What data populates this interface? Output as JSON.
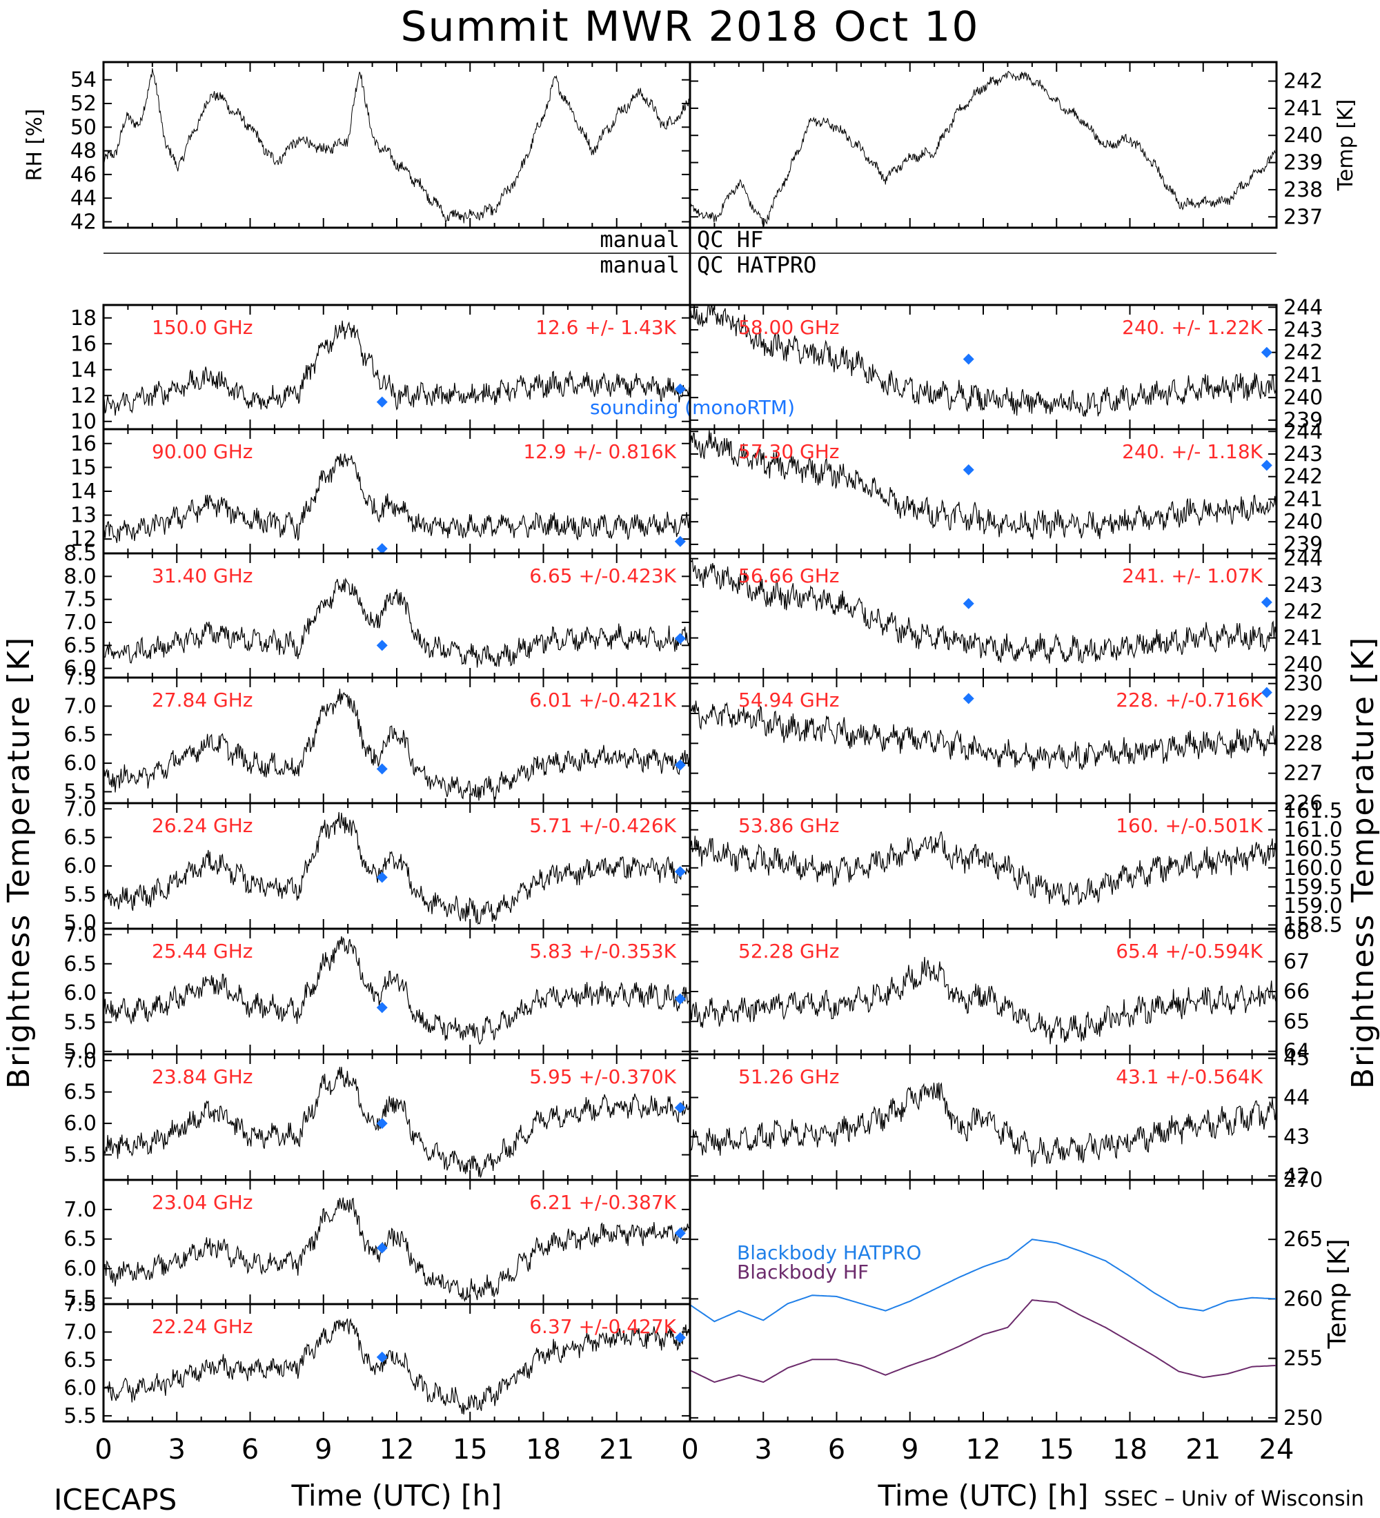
{
  "title": "Summit MWR 2018 Oct 10",
  "footer_left": "ICECAPS",
  "footer_right": "SSEC – Univ of Wisconsin",
  "x_axis": {
    "label": "Time (UTC) [h]",
    "ticks": [
      0,
      3,
      6,
      9,
      12,
      15,
      18,
      21,
      24
    ],
    "range": [
      0,
      24
    ]
  },
  "y_axis_left_label": "Brightness Temperature [K]",
  "y_axis_right_label": "Brightness Temperature [K]",
  "qc": {
    "left_text": "manual",
    "line1_right": "QC HF",
    "line2_right": "QC HATPRO"
  },
  "sounding_label": "sounding (monoRTM)",
  "colors": {
    "data": "#000000",
    "stat_text": "#ff2a2a",
    "sounding": "#1a75ff",
    "bb_hatpro": "#1f7fe8",
    "bb_hf": "#6b2a6b"
  },
  "chart_data": [
    {
      "id": "rh",
      "type": "line",
      "ylabel": "RH [%]",
      "ylim": [
        41.5,
        55.5
      ],
      "yticks": [
        42,
        44,
        46,
        48,
        50,
        52,
        54
      ],
      "x": [
        0,
        0.5,
        1,
        1.5,
        2,
        2.5,
        3,
        4,
        4.5,
        5,
        6,
        7,
        8,
        9,
        10,
        10.5,
        11,
        12,
        13,
        14,
        15,
        16,
        17,
        18,
        18.5,
        19,
        20,
        21,
        22,
        23,
        24
      ],
      "values": [
        47,
        48,
        51,
        50,
        55,
        49,
        46.5,
        51,
        53,
        52,
        50,
        47,
        49,
        48,
        49,
        55,
        49,
        47,
        45,
        42.5,
        42.5,
        43,
        46,
        51,
        54,
        52,
        48,
        51,
        53,
        50,
        52
      ]
    },
    {
      "id": "temp",
      "type": "line",
      "ylabel": "Temp [K]",
      "ylim": [
        236.6,
        242.7
      ],
      "yticks": [
        237,
        238,
        239,
        240,
        241,
        242
      ],
      "x": [
        0,
        1,
        2,
        3,
        4,
        5,
        6,
        7,
        8,
        9,
        10,
        11,
        12,
        13,
        14,
        15,
        16,
        17,
        18,
        19,
        20,
        21,
        22,
        23,
        24
      ],
      "values": [
        237.3,
        236.9,
        238.3,
        236.7,
        238.6,
        240.6,
        240.3,
        239.5,
        238.4,
        239.2,
        239.4,
        240.9,
        241.8,
        242.2,
        242.1,
        241.2,
        240.6,
        239.6,
        239.9,
        238.9,
        237.5,
        237.5,
        237.6,
        238.5,
        239.3
      ]
    },
    {
      "id": "f150",
      "type": "line",
      "freq_label": "150.0 GHz",
      "stat": "12.6 +/- 1.43K",
      "ylim": [
        9.4,
        19
      ],
      "yticks": [
        10,
        12,
        14,
        16,
        18
      ],
      "ytick_labels": [
        "10",
        "12",
        "14",
        "16",
        "18"
      ],
      "x": [
        0,
        2,
        4.5,
        6,
        8,
        9,
        10,
        11,
        12,
        15,
        18,
        21,
        24
      ],
      "values": [
        11,
        12,
        13.5,
        11.5,
        12.3,
        15.8,
        17.5,
        14,
        12,
        12,
        12.8,
        12.8,
        12.3
      ],
      "sounding": [
        [
          11.4,
          11.5
        ],
        [
          23.6,
          12.5
        ]
      ],
      "show_sounding_label": true
    },
    {
      "id": "f90",
      "type": "line",
      "freq_label": "90.00 GHz",
      "stat": "12.9 +/- 0.816K",
      "ylim": [
        11.4,
        16.6
      ],
      "yticks": [
        12,
        13,
        14,
        15,
        16
      ],
      "ytick_labels": [
        "12",
        "13",
        "14",
        "15",
        "16"
      ],
      "x": [
        0,
        2,
        4.5,
        6,
        8,
        9,
        10,
        11,
        12,
        13,
        15,
        18,
        21,
        24
      ],
      "values": [
        12.2,
        12.5,
        13.5,
        12.8,
        12.5,
        14.5,
        15.5,
        13.2,
        13.5,
        12.5,
        12.5,
        12.6,
        12.5,
        12.7
      ],
      "sounding": [
        [
          11.4,
          11.6
        ],
        [
          23.6,
          11.9
        ]
      ]
    },
    {
      "id": "f31",
      "type": "line",
      "freq_label": "31.40 GHz",
      "stat": "6.65 +/-0.423K",
      "ylim": [
        5.8,
        8.5
      ],
      "yticks": [
        6.0,
        6.5,
        7.0,
        7.5,
        8.0,
        8.5
      ],
      "ytick_labels": [
        "6.0",
        "6.5",
        "7.0",
        "7.5",
        "8.0",
        "8.5"
      ],
      "x": [
        0,
        2,
        4.5,
        6,
        8,
        9,
        10,
        11,
        12,
        13,
        15,
        16,
        18,
        21,
        24
      ],
      "values": [
        6.3,
        6.4,
        6.8,
        6.6,
        6.5,
        7.4,
        7.9,
        6.9,
        7.7,
        6.5,
        6.3,
        6.2,
        6.6,
        6.7,
        6.6
      ],
      "sounding": [
        [
          11.4,
          6.5
        ],
        [
          23.6,
          6.65
        ]
      ]
    },
    {
      "id": "f27",
      "type": "line",
      "freq_label": "27.84 GHz",
      "stat": "6.01 +/-0.421K",
      "ylim": [
        5.3,
        7.5
      ],
      "yticks": [
        5.5,
        6.0,
        6.5,
        7.0,
        7.5
      ],
      "ytick_labels": [
        "5.5",
        "6.0",
        "6.5",
        "7.0",
        "7.5"
      ],
      "x": [
        0,
        2,
        4.5,
        6,
        8,
        9,
        10,
        11,
        12,
        13,
        15,
        16,
        18,
        21,
        24
      ],
      "values": [
        5.7,
        5.8,
        6.4,
        6.0,
        5.9,
        6.9,
        7.2,
        6.0,
        6.6,
        5.8,
        5.5,
        5.6,
        6.0,
        6.1,
        6.0
      ],
      "sounding": [
        [
          11.4,
          5.9
        ],
        [
          23.6,
          5.97
        ]
      ]
    },
    {
      "id": "f26",
      "type": "line",
      "freq_label": "26.24 GHz",
      "stat": "5.71 +/-0.426K",
      "ylim": [
        4.9,
        7.1
      ],
      "yticks": [
        5.0,
        5.5,
        6.0,
        6.5,
        7.0
      ],
      "ytick_labels": [
        "5.0",
        "5.5",
        "6.0",
        "6.5",
        "7.0"
      ],
      "x": [
        0,
        2,
        4.5,
        6,
        8,
        9,
        10,
        11,
        12,
        13,
        15,
        16,
        18,
        21,
        24
      ],
      "values": [
        5.4,
        5.5,
        6.1,
        5.7,
        5.6,
        6.6,
        6.8,
        5.8,
        6.2,
        5.4,
        5.2,
        5.2,
        5.8,
        6.0,
        5.9
      ],
      "sounding": [
        [
          11.4,
          5.8
        ],
        [
          23.6,
          5.9
        ]
      ]
    },
    {
      "id": "f25",
      "type": "line",
      "freq_label": "25.44 GHz",
      "stat": "5.83 +/-0.353K",
      "ylim": [
        4.95,
        7.1
      ],
      "yticks": [
        5.0,
        5.5,
        6.0,
        6.5,
        7.0
      ],
      "ytick_labels": [
        "5.0",
        "5.5",
        "6.0",
        "6.5",
        "7.0"
      ],
      "x": [
        0,
        2,
        4.5,
        6,
        8,
        9,
        10,
        11,
        12,
        13,
        15,
        16,
        18,
        21,
        24
      ],
      "values": [
        5.7,
        5.7,
        6.2,
        5.8,
        5.7,
        6.5,
        6.9,
        5.9,
        6.3,
        5.5,
        5.3,
        5.4,
        5.9,
        6.0,
        5.9
      ],
      "sounding": [
        [
          11.4,
          5.75
        ],
        [
          23.6,
          5.9
        ]
      ]
    },
    {
      "id": "f23_8",
      "type": "line",
      "freq_label": "23.84 GHz",
      "stat": "5.95 +/-0.370K",
      "ylim": [
        5.1,
        7.1
      ],
      "yticks": [
        5.5,
        6.0,
        6.5,
        7.0
      ],
      "ytick_labels": [
        "5.5",
        "6.0",
        "6.5",
        "7.0"
      ],
      "x": [
        0,
        2,
        4.5,
        6,
        8,
        9,
        10,
        11,
        12,
        13,
        15,
        16,
        18,
        21,
        24
      ],
      "values": [
        5.6,
        5.7,
        6.2,
        5.8,
        5.8,
        6.6,
        6.8,
        5.9,
        6.4,
        5.6,
        5.3,
        5.4,
        6.1,
        6.3,
        6.2
      ],
      "sounding": [
        [
          11.4,
          6.0
        ],
        [
          23.6,
          6.25
        ]
      ]
    },
    {
      "id": "f23_0",
      "type": "line",
      "freq_label": "23.04 GHz",
      "stat": "6.21 +/-0.387K",
      "ylim": [
        5.4,
        7.5
      ],
      "yticks": [
        5.5,
        6.0,
        6.5,
        7.0
      ],
      "ytick_labels": [
        "5.5",
        "6.0",
        "6.5",
        "7.0"
      ],
      "x": [
        0,
        2,
        4.5,
        6,
        8,
        9,
        10,
        11,
        12,
        13,
        15,
        16,
        18,
        21,
        24
      ],
      "values": [
        5.9,
        6.0,
        6.4,
        6.1,
        6.1,
        6.8,
        7.2,
        6.2,
        6.6,
        5.9,
        5.6,
        5.7,
        6.4,
        6.6,
        6.6
      ],
      "sounding": [
        [
          11.4,
          6.35
        ],
        [
          23.6,
          6.6
        ]
      ]
    },
    {
      "id": "f22",
      "type": "line",
      "freq_label": "22.24 GHz",
      "stat": "6.37 +/-0.427K",
      "ylim": [
        5.4,
        7.5
      ],
      "yticks": [
        5.5,
        6.0,
        6.5,
        7.0,
        7.5
      ],
      "ytick_labels": [
        "5.5",
        "6.0",
        "6.5",
        "7.0",
        "7.5"
      ],
      "x": [
        0,
        2,
        4.5,
        6,
        8,
        9,
        10,
        11,
        12,
        13,
        15,
        16,
        18,
        21,
        24
      ],
      "values": [
        5.9,
        6.0,
        6.4,
        6.3,
        6.4,
        6.9,
        7.2,
        6.3,
        6.6,
        6.0,
        5.7,
        5.9,
        6.6,
        6.9,
        6.9
      ],
      "sounding": [
        [
          11.4,
          6.55
        ],
        [
          23.6,
          6.9
        ]
      ]
    },
    {
      "id": "f58",
      "type": "line",
      "freq_label": "58.00 GHz",
      "stat": "240. +/- 1.22K",
      "ylim": [
        238.6,
        244.1
      ],
      "yticks": [
        239,
        240,
        241,
        242,
        243,
        244
      ],
      "ytick_labels": [
        "239",
        "240",
        "241",
        "242",
        "243",
        "244"
      ],
      "x": [
        0,
        1,
        2,
        3,
        4,
        5,
        6,
        7,
        8,
        9,
        10,
        11,
        12,
        13,
        15,
        16,
        18,
        21,
        24
      ],
      "values": [
        243.5,
        243.7,
        243.2,
        242.3,
        242.2,
        241.9,
        241.8,
        241.5,
        240.6,
        240.3,
        240.2,
        240.1,
        240.0,
        239.9,
        239.8,
        239.6,
        240.0,
        240.4,
        240.5
      ],
      "sounding": [
        [
          11.4,
          241.7
        ],
        [
          23.6,
          242.0
        ]
      ]
    },
    {
      "id": "f57",
      "type": "line",
      "freq_label": "57.30 GHz",
      "stat": "240. +/- 1.18K",
      "ylim": [
        238.6,
        244.1
      ],
      "yticks": [
        239,
        240,
        241,
        242,
        243,
        244
      ],
      "ytick_labels": [
        "239",
        "240",
        "241",
        "242",
        "243",
        "244"
      ],
      "x": [
        0,
        1,
        2,
        3,
        4,
        5,
        6,
        7,
        8,
        9,
        10,
        11,
        12,
        13,
        15,
        16,
        18,
        21,
        24
      ],
      "values": [
        243.3,
        243.4,
        243.0,
        242.6,
        242.4,
        242.3,
        242.1,
        241.8,
        241.0,
        240.6,
        240.4,
        240.3,
        240.1,
        239.9,
        239.9,
        239.8,
        240.0,
        240.5,
        240.6
      ],
      "sounding": [
        [
          11.4,
          242.3
        ],
        [
          23.6,
          242.5
        ]
      ]
    },
    {
      "id": "f56",
      "type": "line",
      "freq_label": "56.66 GHz",
      "stat": "241. +/- 1.07K",
      "ylim": [
        239.5,
        244.2
      ],
      "yticks": [
        240,
        241,
        242,
        243,
        244
      ],
      "ytick_labels": [
        "240",
        "241",
        "242",
        "243",
        "244"
      ],
      "x": [
        0,
        1,
        2,
        3,
        4,
        5,
        6,
        7,
        8,
        9,
        10,
        11,
        12,
        13,
        15,
        16,
        18,
        21,
        24
      ],
      "values": [
        243.5,
        243.4,
        243.1,
        242.7,
        242.6,
        242.5,
        242.3,
        242.0,
        241.5,
        241.2,
        241.0,
        240.9,
        240.7,
        240.6,
        240.6,
        240.5,
        240.7,
        241.0,
        241.1
      ],
      "sounding": [
        [
          11.4,
          242.3
        ],
        [
          23.6,
          242.35
        ]
      ]
    },
    {
      "id": "f54",
      "type": "line",
      "freq_label": "54.94 GHz",
      "stat": "228. +/-0.716K",
      "ylim": [
        226,
        230.2
      ],
      "yticks": [
        226,
        227,
        228,
        229,
        230
      ],
      "ytick_labels": [
        "226",
        "227",
        "228",
        "229",
        "230"
      ],
      "x": [
        0,
        2,
        4,
        6,
        8,
        10,
        11,
        12,
        14,
        16,
        18,
        20,
        22,
        24
      ],
      "values": [
        229.0,
        228.9,
        228.5,
        228.4,
        228.2,
        228.1,
        227.9,
        227.7,
        227.6,
        227.6,
        227.7,
        227.9,
        228.0,
        228.1
      ],
      "sounding": [
        [
          11.4,
          229.5
        ],
        [
          23.6,
          229.7
        ]
      ]
    },
    {
      "id": "f53",
      "type": "line",
      "freq_label": "53.86 GHz",
      "stat": "160. +/-0.501K",
      "ylim": [
        158.4,
        161.7
      ],
      "yticks": [
        158.5,
        159.0,
        159.5,
        160.0,
        160.5,
        161.0,
        161.5
      ],
      "ytick_labels": [
        "158.5",
        "159.0",
        "159.5",
        "160.0",
        "160.5",
        "161.0",
        "161.5"
      ],
      "x": [
        0,
        2,
        4,
        6,
        8,
        9,
        10,
        11,
        12,
        14,
        15,
        16,
        18,
        20,
        22,
        24
      ],
      "values": [
        160.5,
        160.3,
        160.1,
        159.9,
        160.2,
        160.5,
        160.7,
        160.2,
        160.3,
        159.6,
        159.4,
        159.3,
        159.8,
        160.1,
        160.2,
        160.4
      ],
      "sounding": []
    },
    {
      "id": "f52",
      "type": "line",
      "freq_label": "52.28 GHz",
      "stat": "65.4 +/-0.594K",
      "ylim": [
        63.9,
        68.1
      ],
      "yticks": [
        64,
        65,
        66,
        67,
        68
      ],
      "ytick_labels": [
        "64",
        "65",
        "66",
        "67",
        "68"
      ],
      "x": [
        0,
        2,
        4,
        6,
        8,
        9,
        10,
        11,
        12,
        14,
        15,
        16,
        18,
        20,
        22,
        24
      ],
      "values": [
        65.2,
        65.4,
        65.6,
        65.5,
        65.9,
        66.4,
        66.8,
        65.7,
        65.9,
        64.9,
        64.7,
        64.8,
        65.3,
        65.6,
        65.7,
        65.9
      ],
      "sounding": []
    },
    {
      "id": "f51",
      "type": "line",
      "freq_label": "51.26 GHz",
      "stat": "43.1 +/-0.564K",
      "ylim": [
        41.9,
        45.1
      ],
      "yticks": [
        42,
        43,
        44,
        45
      ],
      "ytick_labels": [
        "42",
        "43",
        "44",
        "45"
      ],
      "x": [
        0,
        2,
        4,
        6,
        8,
        9,
        10,
        11,
        12,
        14,
        15,
        16,
        18,
        20,
        22,
        24
      ],
      "values": [
        42.8,
        42.9,
        43.1,
        43.1,
        43.5,
        43.9,
        44.3,
        43.2,
        43.5,
        42.6,
        42.6,
        42.7,
        42.9,
        43.2,
        43.4,
        43.6
      ],
      "sounding": []
    },
    {
      "id": "blackbody",
      "type": "line",
      "ylabel": "Temp [K]",
      "ylim": [
        249.7,
        270
      ],
      "yticks": [
        250,
        255,
        260,
        265,
        270
      ],
      "ytick_labels": [
        "250",
        "255",
        "260",
        "265",
        "270"
      ],
      "x": [
        0,
        1,
        2,
        3,
        4,
        5,
        6,
        7,
        8,
        9,
        10,
        11,
        12,
        13,
        14,
        15,
        16,
        17,
        18,
        19,
        20,
        21,
        22,
        23,
        24
      ],
      "series": [
        {
          "name": "Blackbody HATPRO",
          "values": [
            259.5,
            258.1,
            259.0,
            258.2,
            259.6,
            260.3,
            260.2,
            259.6,
            259.0,
            259.8,
            260.8,
            261.8,
            262.7,
            263.4,
            265.0,
            264.7,
            264.0,
            263.2,
            261.9,
            260.5,
            259.3,
            259.0,
            259.8,
            260.1,
            260.0
          ]
        },
        {
          "name": "Blackbody HF",
          "values": [
            254.0,
            253.0,
            253.6,
            253.0,
            254.2,
            254.9,
            254.9,
            254.4,
            253.6,
            254.4,
            255.1,
            256.0,
            257.0,
            257.6,
            259.9,
            259.7,
            258.6,
            257.6,
            256.4,
            255.2,
            253.9,
            253.4,
            253.7,
            254.3,
            254.4
          ]
        }
      ]
    }
  ]
}
